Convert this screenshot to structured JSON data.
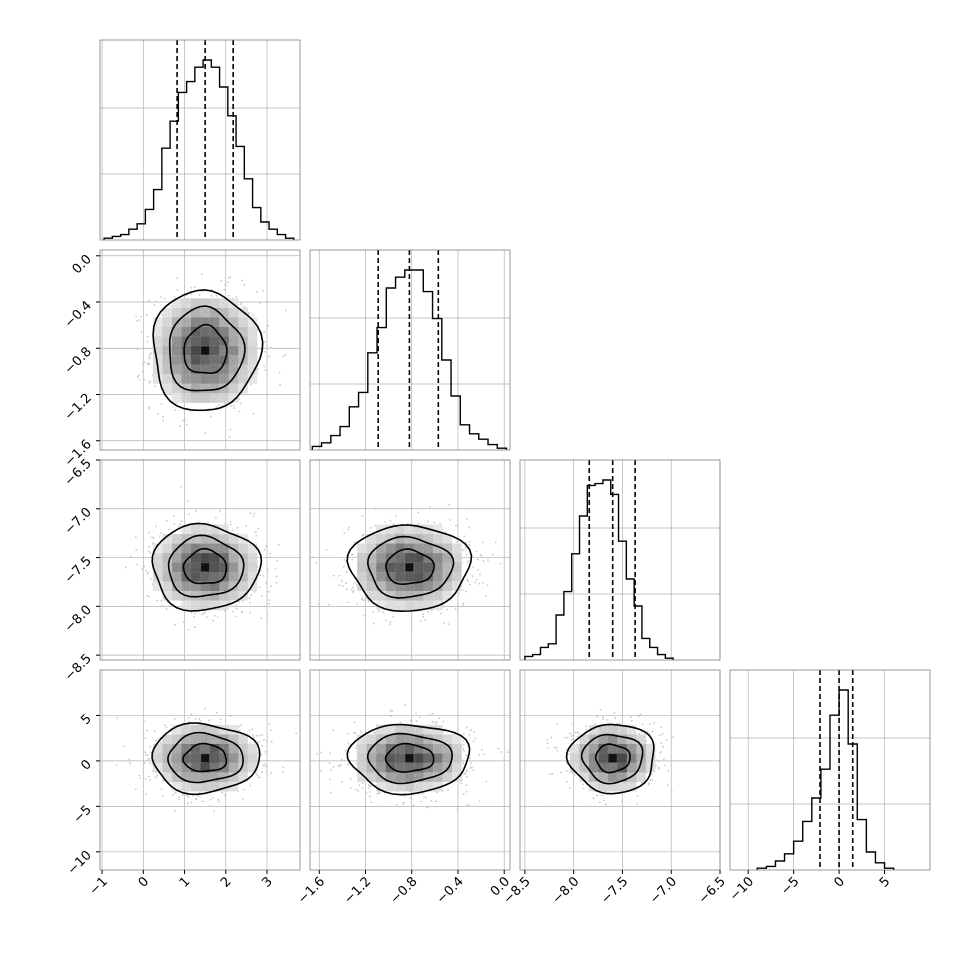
{
  "chart_data": {
    "type": "corner",
    "title": "",
    "grid": true,
    "parameters": [
      {
        "range": [
          -1.05,
          3.8
        ],
        "ticks": [
          -1,
          0,
          1,
          2,
          3
        ],
        "tick_labels": [
          "−1",
          "0",
          "1",
          "2",
          "3"
        ],
        "mean": 1.5,
        "sigma": 0.65,
        "quantiles": [
          0.82,
          1.5,
          2.18
        ],
        "hist_bins": [
          -0.95,
          -0.75,
          -0.55,
          -0.35,
          -0.15,
          0.05,
          0.25,
          0.45,
          0.65,
          0.85,
          1.05,
          1.25,
          1.45,
          1.65,
          1.85,
          2.05,
          2.25,
          2.45,
          2.65,
          2.85,
          3.05,
          3.25,
          3.45,
          3.65
        ],
        "hist_counts": [
          0.01,
          0.02,
          0.03,
          0.06,
          0.09,
          0.17,
          0.28,
          0.51,
          0.66,
          0.82,
          0.88,
          0.96,
          1.0,
          0.96,
          0.85,
          0.69,
          0.52,
          0.34,
          0.18,
          0.1,
          0.06,
          0.03,
          0.01
        ]
      },
      {
        "range": [
          -1.68,
          0.05
        ],
        "ticks": [
          -1.6,
          -1.2,
          -0.8,
          -0.4,
          0.0
        ],
        "tick_labels": [
          "−1.6",
          "−1.2",
          "−0.8",
          "−0.4",
          "0.0"
        ],
        "mean": -0.82,
        "sigma": 0.26,
        "quantiles": [
          -1.09,
          -0.82,
          -0.57
        ],
        "hist_bins": [
          -1.66,
          -1.58,
          -1.5,
          -1.42,
          -1.34,
          -1.26,
          -1.18,
          -1.1,
          -1.02,
          -0.94,
          -0.86,
          -0.78,
          -0.7,
          -0.62,
          -0.54,
          -0.46,
          -0.38,
          -0.3,
          -0.22,
          -0.14,
          -0.06,
          0.02
        ],
        "hist_counts": [
          0.02,
          0.04,
          0.08,
          0.13,
          0.24,
          0.32,
          0.54,
          0.68,
          0.9,
          0.96,
          1.0,
          1.0,
          0.88,
          0.73,
          0.5,
          0.3,
          0.14,
          0.09,
          0.06,
          0.03,
          0.01
        ]
      },
      {
        "range": [
          -8.55,
          -6.5
        ],
        "ticks": [
          -8.5,
          -8.0,
          -7.5,
          -7.0,
          -6.5
        ],
        "tick_labels": [
          "−8.5",
          "−8.0",
          "−7.5",
          "−7.0",
          "−6.5"
        ],
        "mean": -7.6,
        "sigma": 0.22,
        "quantiles": [
          -7.84,
          -7.6,
          -7.37
        ],
        "hist_bins": [
          -8.5,
          -8.42,
          -8.34,
          -8.26,
          -8.18,
          -8.1,
          -8.02,
          -7.94,
          -7.86,
          -7.78,
          -7.7,
          -7.62,
          -7.54,
          -7.46,
          -7.38,
          -7.3,
          -7.22,
          -7.14,
          -7.06,
          -6.98
        ],
        "hist_counts": [
          0.02,
          0.03,
          0.07,
          0.09,
          0.25,
          0.38,
          0.59,
          0.8,
          0.97,
          0.98,
          1.0,
          0.92,
          0.66,
          0.45,
          0.3,
          0.12,
          0.07,
          0.03,
          0.01
        ]
      },
      {
        "range": [
          -12,
          10
        ],
        "ticks": [
          -10,
          -5,
          0,
          5
        ],
        "tick_labels": [
          "−10",
          "−5",
          "0",
          "5"
        ],
        "mean": 0.3,
        "sigma": 1.9,
        "quantiles": [
          -2.1,
          0.0,
          1.5
        ],
        "hist_bins": [
          -9,
          -8,
          -7,
          -6,
          -5,
          -4,
          -3,
          -2,
          -1,
          0,
          1,
          2,
          3,
          4,
          5,
          6
        ],
        "hist_counts": [
          0.01,
          0.02,
          0.05,
          0.09,
          0.16,
          0.27,
          0.4,
          0.56,
          0.86,
          1.0,
          0.7,
          0.28,
          0.1,
          0.04,
          0.01
        ]
      }
    ],
    "pairs": [
      {
        "x_param": 0,
        "y_param": 1
      },
      {
        "x_param": 0,
        "y_param": 2
      },
      {
        "x_param": 1,
        "y_param": 2
      },
      {
        "x_param": 0,
        "y_param": 3
      },
      {
        "x_param": 1,
        "y_param": 3
      },
      {
        "x_param": 2,
        "y_param": 3
      }
    ],
    "contour_levels_sigma": [
      0.8,
      1.4,
      2.0
    ],
    "colors": {
      "line": "#000000",
      "scatter": "#c8c8c8",
      "grid": "#b0b0b0",
      "frame": "#808080"
    }
  }
}
